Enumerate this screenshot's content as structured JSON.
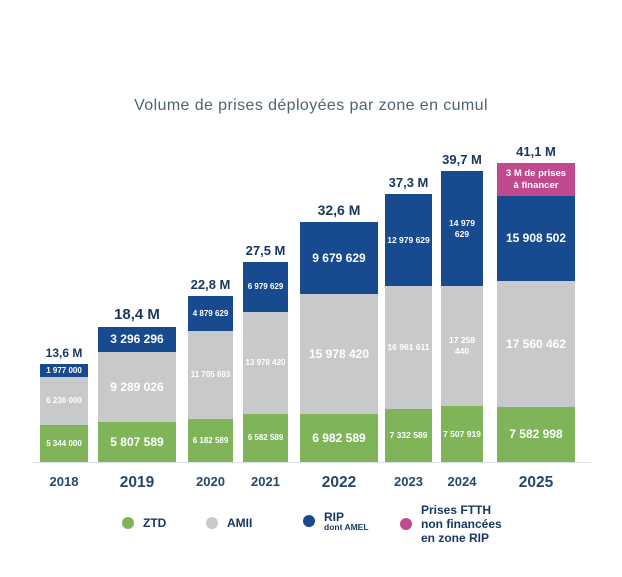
{
  "chart": {
    "title": "Volume de prises déployées par zone en cumul"
  },
  "chart_data": {
    "type": "bar",
    "stacked": true,
    "grid": false,
    "legend_position": "bottom",
    "categories": [
      "2018",
      "2019",
      "2020",
      "2021",
      "2022",
      "2023",
      "2024",
      "2025"
    ],
    "totals": [
      "13,6 M",
      "18,4 M",
      "22,8 M",
      "27,5 M",
      "32,6 M",
      "37,3 M",
      "39,7 M",
      "41,1 M"
    ],
    "series": [
      {
        "name": "ZTD",
        "color": "#7fb558",
        "values": [
          5344000,
          5807589,
          6182589,
          6582589,
          6982589,
          7332589,
          7507919,
          7582998
        ],
        "labels": [
          "5 344 000",
          "5 807 589",
          "6 182 589",
          "6 582 589",
          "6 982 589",
          "7 332 589",
          "7 507 919",
          "7 582 998"
        ]
      },
      {
        "name": "AMII",
        "color": "#c8c9ca",
        "values": [
          6236000,
          9289026,
          11705693,
          13978420,
          15978420,
          16961611,
          17258440,
          17560462
        ],
        "labels": [
          "6 236 000",
          "9 289 026",
          "11 705 693",
          "13 978 420",
          "15 978 420",
          "16 961 611",
          "17 258 440",
          "17 560 462"
        ]
      },
      {
        "name": "RIP dont AMEL",
        "color": "#174a8f",
        "values": [
          1977000,
          3296296,
          4879629,
          6979629,
          9679629,
          12979629,
          14979629,
          15908502
        ],
        "labels": [
          "1 977 000",
          "3 296 296",
          "4 879 629",
          "6 979 629",
          "9 679 629",
          "12 979 629",
          "14 979 629",
          "15 908 502"
        ]
      },
      {
        "name": "Prises FTTH non financées en zone RIP",
        "color": "#c04a8d",
        "values": [
          null,
          null,
          null,
          null,
          null,
          null,
          null,
          3000000
        ],
        "labels": [
          null,
          null,
          null,
          null,
          null,
          null,
          null,
          "3 M de prises\nà financer"
        ]
      }
    ],
    "legend": [
      {
        "label": "ZTD",
        "color": "#7fb558"
      },
      {
        "label": "AMII",
        "color": "#c8c9ca"
      },
      {
        "label": "RIP",
        "sublabel": "dont AMEL",
        "color": "#174a8f"
      },
      {
        "label": "Prises FTTH\nnon financées\nen zone RIP",
        "color": "#c04a8d"
      }
    ]
  }
}
